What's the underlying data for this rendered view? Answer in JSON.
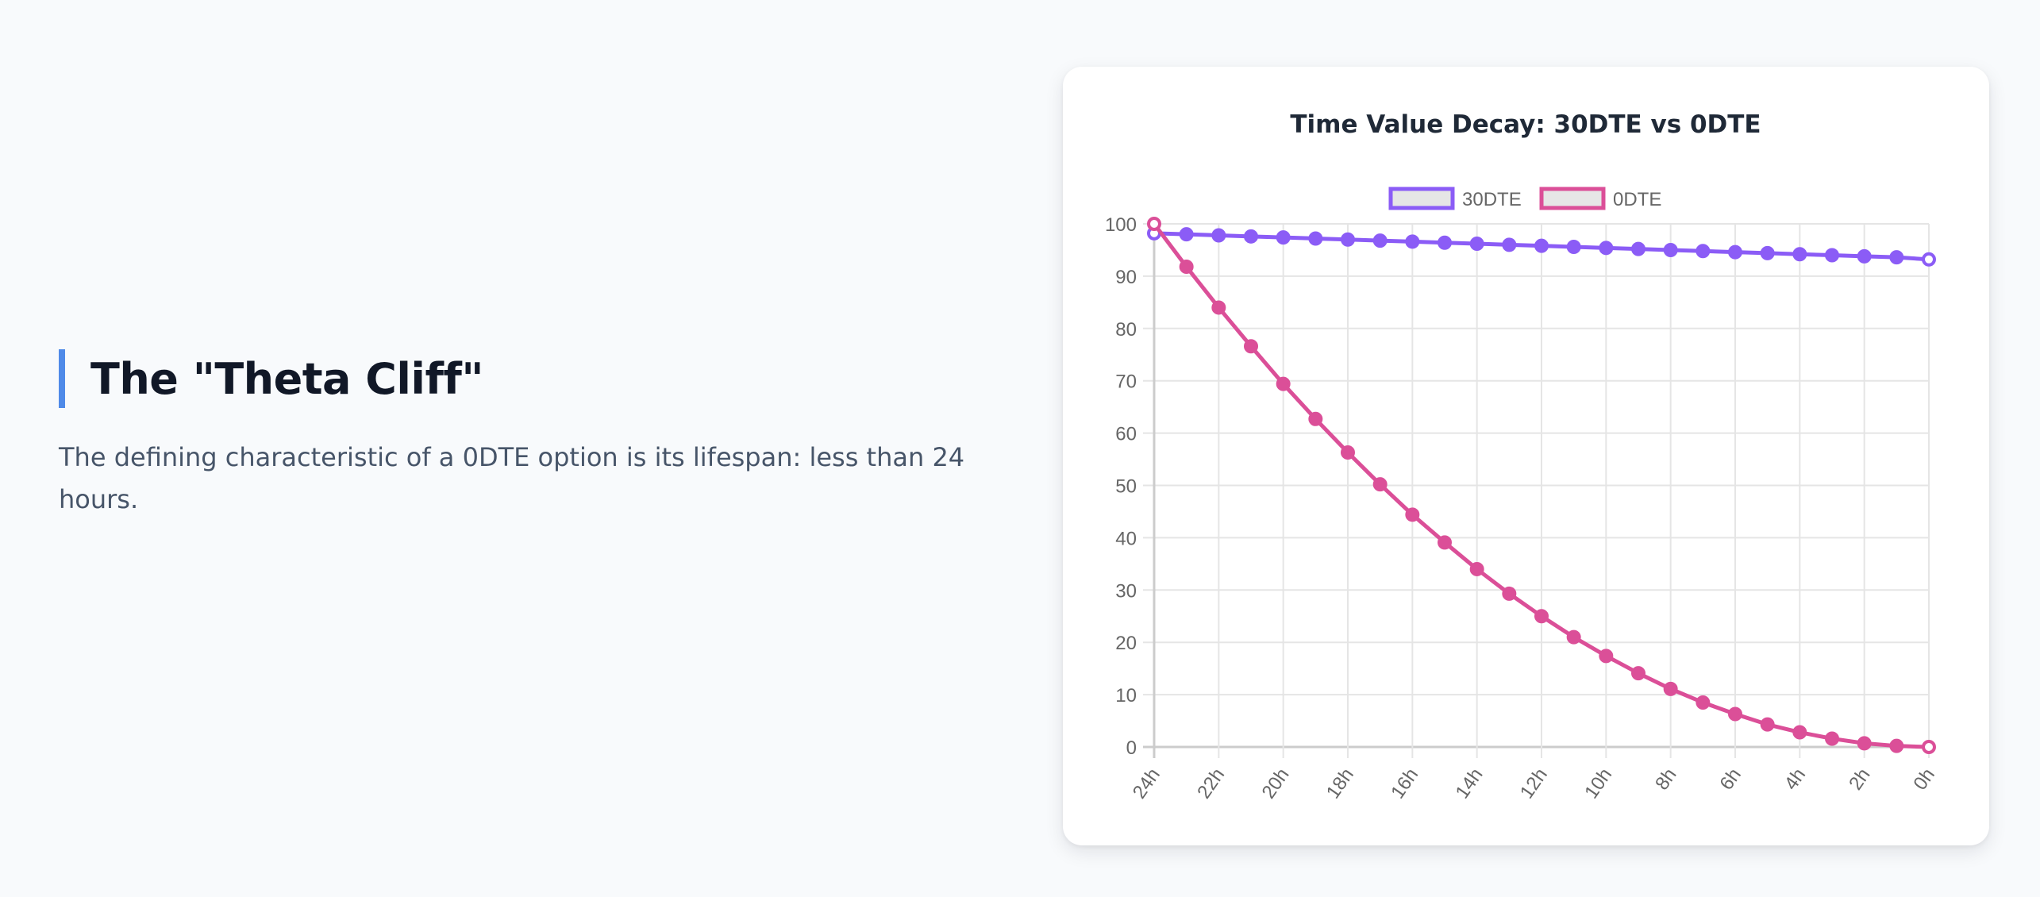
{
  "section": {
    "title": "The \"Theta Cliff\"",
    "description": "The defining characteristic of a 0DTE option is its lifespan: less than 24 hours."
  },
  "colors": {
    "accent_bar": "#4f8ae8",
    "series_30dte": "#8b5cf6",
    "series_0dte": "#db4f98"
  },
  "chart_data": {
    "type": "line",
    "title": "Time Value Decay: 30DTE vs 0DTE",
    "legend_position": "top",
    "grid": true,
    "ylim": [
      0,
      100
    ],
    "yticks": [
      "0",
      "10",
      "20",
      "30",
      "40",
      "50",
      "60",
      "70",
      "80",
      "90",
      "100"
    ],
    "x": [
      "24h",
      "23h",
      "22h",
      "21h",
      "20h",
      "19h",
      "18h",
      "17h",
      "16h",
      "15h",
      "14h",
      "13h",
      "12h",
      "11h",
      "10h",
      "9h",
      "8h",
      "7h",
      "6h",
      "5h",
      "4h",
      "3h",
      "2h",
      "1h",
      "0h"
    ],
    "xtick_labels": [
      "24h",
      "22h",
      "20h",
      "18h",
      "16h",
      "14h",
      "12h",
      "10h",
      "8h",
      "6h",
      "4h",
      "2h",
      "0h"
    ],
    "series": [
      {
        "name": "30DTE",
        "color": "#8b5cf6",
        "values": [
          98.2,
          98.0,
          97.8,
          97.6,
          97.4,
          97.2,
          97.0,
          96.8,
          96.6,
          96.4,
          96.2,
          96.0,
          95.8,
          95.6,
          95.4,
          95.2,
          95.0,
          94.8,
          94.6,
          94.4,
          94.2,
          94.0,
          93.8,
          93.6,
          93.2
        ]
      },
      {
        "name": "0DTE",
        "color": "#db4f98",
        "values": [
          100,
          91.8,
          84.0,
          76.6,
          69.4,
          62.7,
          56.3,
          50.2,
          44.4,
          39.1,
          34.0,
          29.3,
          25.0,
          21.0,
          17.4,
          14.1,
          11.1,
          8.5,
          6.3,
          4.3,
          2.8,
          1.6,
          0.7,
          0.2,
          0
        ]
      }
    ]
  }
}
